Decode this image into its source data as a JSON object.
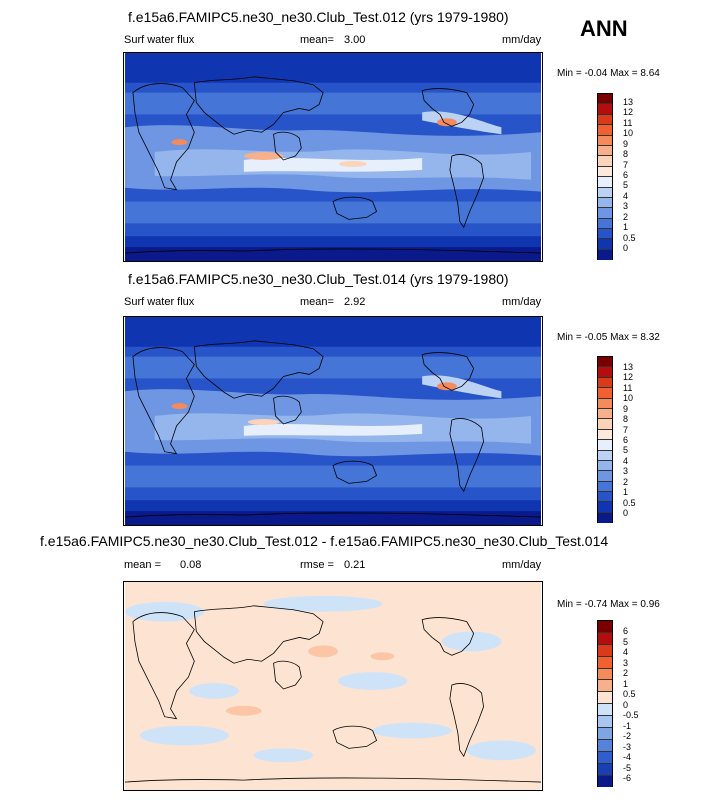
{
  "season": "ANN",
  "panels": [
    {
      "title": "f.e15a6.FAMIPC5.ne30_ne30.Club_Test.012 (yrs 1979-1980)",
      "left_label": "Surf water flux",
      "mean_label": "mean=",
      "mean_value": "3.00",
      "units": "mm/day",
      "minmax": "Min =  -0.04 Max =   8.64",
      "colorbar_ticks": [
        "13",
        "12",
        "11",
        "10",
        "9",
        "8",
        "7",
        "6",
        "5",
        "4",
        "3",
        "2",
        "1",
        "0.5",
        "0"
      ]
    },
    {
      "title": "f.e15a6.FAMIPC5.ne30_ne30.Club_Test.014 (yrs 1979-1980)",
      "left_label": "Surf water flux",
      "mean_label": "mean=",
      "mean_value": "2.92",
      "units": "mm/day",
      "minmax": "Min =  -0.05 Max =   8.32",
      "colorbar_ticks": [
        "13",
        "12",
        "11",
        "10",
        "9",
        "8",
        "7",
        "6",
        "5",
        "4",
        "3",
        "2",
        "1",
        "0.5",
        "0"
      ]
    },
    {
      "title": "f.e15a6.FAMIPC5.ne30_ne30.Club_Test.012 - f.e15a6.FAMIPC5.ne30_ne30.Club_Test.014",
      "left_label": "mean =",
      "mean_value": "0.08",
      "rmse_label": "rmse =",
      "rmse_value": "0.21",
      "units": "mm/day",
      "minmax": "Min =  -0.74 Max =   0.96",
      "colorbar_ticks": [
        "6",
        "5",
        "4",
        "3",
        "2",
        "1",
        "0.5",
        "0",
        "-0.5",
        "-1",
        "-2",
        "-3",
        "-4",
        "-5",
        "-6"
      ]
    }
  ],
  "colors": {
    "flux_scale": [
      "#7a0000",
      "#b30d0d",
      "#d93a1a",
      "#f06030",
      "#f58a5a",
      "#f8b08a",
      "#fbd3b8",
      "#fde8dc",
      "#e6effb",
      "#bcd2f4",
      "#94b6ec",
      "#6e96e3",
      "#4575d6",
      "#2754c8",
      "#1035b0",
      "#0a1a8a"
    ],
    "diff_scale": [
      "#7a0000",
      "#b30d0d",
      "#d93a1a",
      "#f06030",
      "#f58a5a",
      "#f8b08a",
      "#fde4d2",
      "#cfe3f8",
      "#a9c6f0",
      "#7ea6e6",
      "#5582da",
      "#2f5fcc",
      "#1840b3",
      "#0a1a8a"
    ],
    "land_line": "#000000",
    "diff_background": "#fde4d2"
  }
}
